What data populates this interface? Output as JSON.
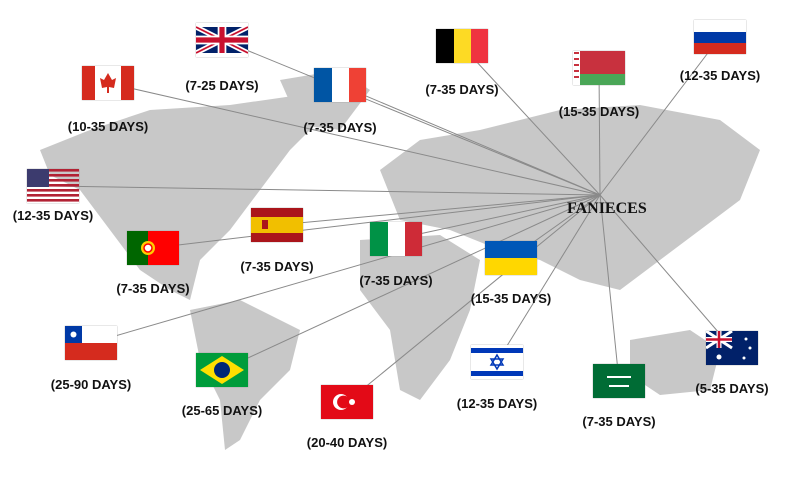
{
  "brand": "FANIECES",
  "colors": {
    "land": "#c8c8c8",
    "line": "#8a8a8a"
  },
  "countries": [
    {
      "name": "United Kingdom",
      "flag": "uk-flag",
      "days": "(7-25 DAYS)"
    },
    {
      "name": "Canada",
      "flag": "canada-flag",
      "days": "(10-35 DAYS)"
    },
    {
      "name": "France",
      "flag": "france-flag",
      "days": "(7-35 DAYS)"
    },
    {
      "name": "Belgium",
      "flag": "belgium-flag",
      "days": "(7-35 DAYS)"
    },
    {
      "name": "Belarus",
      "flag": "belarus-flag",
      "days": "(15-35 DAYS)"
    },
    {
      "name": "Russia",
      "flag": "russia-flag",
      "days": "(12-35 DAYS)"
    },
    {
      "name": "United States",
      "flag": "usa-flag",
      "days": "(12-35 DAYS)"
    },
    {
      "name": "Spain",
      "flag": "spain-flag",
      "days": "(7-35 DAYS)"
    },
    {
      "name": "Portugal",
      "flag": "portugal-flag",
      "days": "(7-35 DAYS)"
    },
    {
      "name": "Italy",
      "flag": "italy-flag",
      "days": "(7-35 DAYS)"
    },
    {
      "name": "Ukraine",
      "flag": "ukraine-flag",
      "days": "(15-35 DAYS)"
    },
    {
      "name": "Chile",
      "flag": "chile-flag",
      "days": "(25-90 DAYS)"
    },
    {
      "name": "Brazil",
      "flag": "brazil-flag",
      "days": "(25-65 DAYS)"
    },
    {
      "name": "Turkey",
      "flag": "turkey-flag",
      "days": "(20-40 DAYS)"
    },
    {
      "name": "Israel",
      "flag": "israel-flag",
      "days": "(12-35 DAYS)"
    },
    {
      "name": "Saudi Arabia",
      "flag": "saudi-arabia-flag",
      "days": "(7-35 DAYS)"
    },
    {
      "name": "Australia",
      "flag": "australia-flag",
      "days": "(5-35 DAYS)"
    }
  ]
}
